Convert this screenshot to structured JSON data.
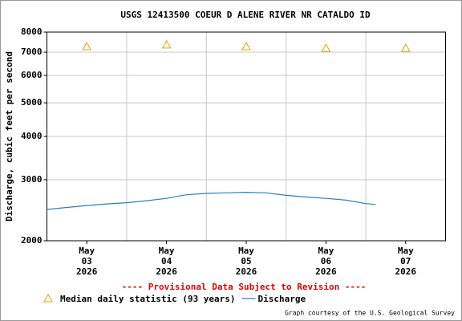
{
  "chart_data": {
    "type": "line",
    "title": "USGS 12413500 COEUR D ALENE RIVER NR CATALDO ID",
    "y_label": "Discharge, cubic feet per second",
    "annotation": "---- Provisional Data Subject to Revision ----",
    "footer": "Graph courtesy of the U.S. Geological Survey",
    "log_y": true,
    "grid": true,
    "xlim": [
      "2026-05-03T00:00",
      "2026-05-08T00:00"
    ],
    "xticks": [
      {
        "value": "2026-05-03T12:00",
        "label": [
          "May",
          "03",
          "2026"
        ]
      },
      {
        "value": "2026-05-04T12:00",
        "label": [
          "May",
          "04",
          "2026"
        ]
      },
      {
        "value": "2026-05-05T12:00",
        "label": [
          "May",
          "05",
          "2026"
        ]
      },
      {
        "value": "2026-05-06T12:00",
        "label": [
          "May",
          "06",
          "2026"
        ]
      },
      {
        "value": "2026-05-07T12:00",
        "label": [
          "May",
          "07",
          "2026"
        ]
      }
    ],
    "xgrid": [
      "2026-05-04T00:00",
      "2026-05-05T00:00",
      "2026-05-06T00:00",
      "2026-05-07T00:00"
    ],
    "ylim": [
      2000,
      8000
    ],
    "yticks": [
      2000,
      3000,
      4000,
      5000,
      6000,
      7000,
      8000
    ],
    "series": [
      {
        "name": "Median daily statistic (93 years)",
        "color": "#f0a000",
        "marker": "triangle",
        "x": [
          "2026-05-03T12:00",
          "2026-05-04T12:00",
          "2026-05-05T12:00",
          "2026-05-06T12:00",
          "2026-05-07T12:00"
        ],
        "values": [
          7270,
          7350,
          7270,
          7190,
          7190
        ]
      },
      {
        "name": "Discharge",
        "color": "#2a7fc0",
        "marker": "line",
        "x": [
          "2026-05-03T00:00",
          "2026-05-03T06:00",
          "2026-05-03T12:00",
          "2026-05-03T18:00",
          "2026-05-04T00:00",
          "2026-05-04T06:00",
          "2026-05-04T12:00",
          "2026-05-04T18:00",
          "2026-05-05T00:00",
          "2026-05-05T06:00",
          "2026-05-05T12:00",
          "2026-05-05T18:00",
          "2026-05-06T00:00",
          "2026-05-06T06:00",
          "2026-05-06T12:00",
          "2026-05-06T18:00",
          "2026-05-07T00:00",
          "2026-05-07T03:00"
        ],
        "values": [
          2462,
          2495,
          2528,
          2555,
          2575,
          2610,
          2650,
          2715,
          2740,
          2750,
          2760,
          2750,
          2705,
          2675,
          2650,
          2620,
          2560,
          2545
        ]
      }
    ]
  }
}
